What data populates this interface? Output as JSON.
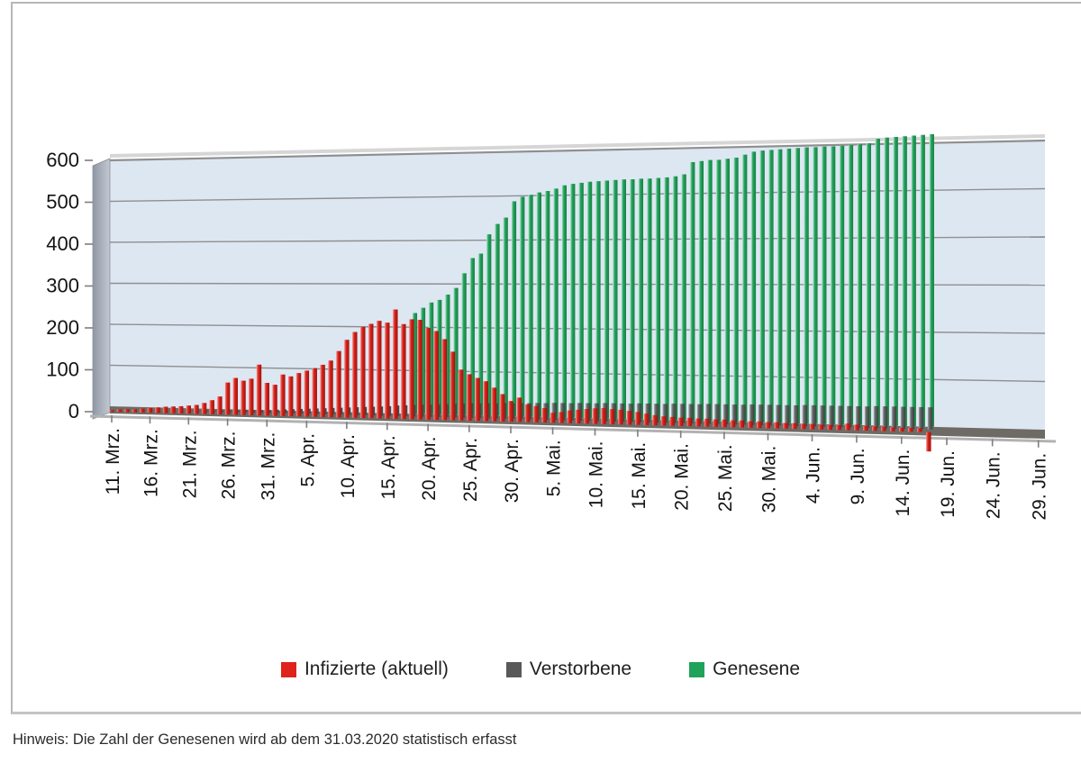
{
  "note": "Hinweis: Die Zahl der Genesenen wird ab dem 31.03.2020 statistisch erfasst",
  "chart_data": {
    "type": "bar",
    "subtype": "3d-perspective-daily-bars",
    "date_range": {
      "first_bar": "11. Mrz.",
      "last_bar": "17. Jun.",
      "frequency": "daily"
    },
    "x_axis": {
      "tick_step_days": 5,
      "tick_labels": [
        "11. Mrz.",
        "16. Mrz.",
        "21. Mrz.",
        "26. Mrz.",
        "31. Mrz.",
        "5. Apr.",
        "10. Apr.",
        "15. Apr.",
        "20. Apr.",
        "25. Apr.",
        "30. Apr.",
        "5. Mai.",
        "10. Mai.",
        "15. Mai.",
        "20. Mai.",
        "25. Mai.",
        "30. Mai.",
        "4. Jun.",
        "9. Jun.",
        "14. Jun.",
        "19. Jun.",
        "24. Jun.",
        "29. Jun."
      ]
    },
    "y_axis": {
      "ticks": [
        0,
        100,
        200,
        300,
        400,
        500,
        600
      ],
      "min": 0,
      "max": 600
    },
    "grid": "horizontal",
    "legend_position": "bottom",
    "plot_bg_color": "#dde7f2",
    "wall_color": "#a3abb7",
    "floor_color": "#6e6a65",
    "series": [
      {
        "name": "Infizierte (aktuell)",
        "color": "#de231c",
        "values": [
          4,
          6,
          7,
          7,
          9,
          11,
          13,
          15,
          16,
          17,
          19,
          21,
          26,
          33,
          42,
          75,
          86,
          80,
          85,
          118,
          76,
          72,
          96,
          92,
          100,
          106,
          112,
          120,
          130,
          152,
          178,
          196,
          208,
          215,
          222,
          218,
          248,
          215,
          226,
          225,
          207,
          200,
          182,
          154,
          114,
          104,
          96,
          89,
          75,
          61,
          46,
          54,
          39,
          36,
          32,
          22,
          24,
          28,
          30,
          32,
          34,
          35,
          33,
          32,
          30,
          28,
          25,
          22,
          20,
          19,
          18,
          18,
          17,
          17,
          16,
          16,
          15,
          15,
          14,
          14,
          13,
          13,
          12,
          12,
          11,
          11,
          10,
          10,
          10,
          14,
          12,
          10,
          9,
          9,
          8,
          8,
          8,
          8,
          -40
        ]
      },
      {
        "name": "Verstorbene",
        "color": "#595959",
        "values": [
          0,
          0,
          0,
          0,
          0,
          0,
          0,
          0,
          0,
          0,
          1,
          1,
          2,
          2,
          3,
          3,
          4,
          5,
          5,
          6,
          7,
          8,
          9,
          10,
          11,
          12,
          13,
          14,
          15,
          16,
          17,
          18,
          19,
          20,
          21,
          22,
          24,
          25,
          26,
          27,
          28,
          29,
          30,
          31,
          32,
          33,
          33,
          34,
          34,
          35,
          35,
          36,
          36,
          37,
          37,
          38,
          38,
          38,
          39,
          39,
          39,
          40,
          40,
          40,
          40,
          41,
          41,
          41,
          41,
          42,
          42,
          42,
          42,
          43,
          43,
          43,
          43,
          43,
          44,
          44,
          44,
          44,
          44,
          44,
          45,
          45,
          45,
          45,
          45,
          45,
          45,
          45,
          46,
          46,
          46,
          46,
          46,
          46,
          46
        ]
      },
      {
        "name": "Genesene",
        "color": "#1fa25a",
        "values": [
          0,
          0,
          0,
          0,
          0,
          0,
          0,
          0,
          0,
          0,
          0,
          0,
          0,
          0,
          0,
          0,
          0,
          0,
          0,
          0,
          0,
          0,
          0,
          0,
          0,
          0,
          0,
          0,
          0,
          0,
          0,
          0,
          0,
          0,
          0,
          0,
          0,
          0,
          228,
          240,
          252,
          258,
          270,
          285,
          318,
          352,
          362,
          405,
          428,
          442,
          478,
          488,
          492,
          497,
          500,
          505,
          512,
          515,
          517,
          519,
          520,
          521,
          522,
          523,
          523,
          524,
          524,
          525,
          526,
          528,
          532,
          558,
          560,
          562,
          562,
          564,
          566,
          572,
          578,
          580,
          581,
          582,
          583,
          584,
          585,
          585,
          586,
          586,
          587,
          588,
          589,
          591,
          600,
          602,
          603,
          604,
          605,
          606,
          607
        ]
      }
    ]
  }
}
